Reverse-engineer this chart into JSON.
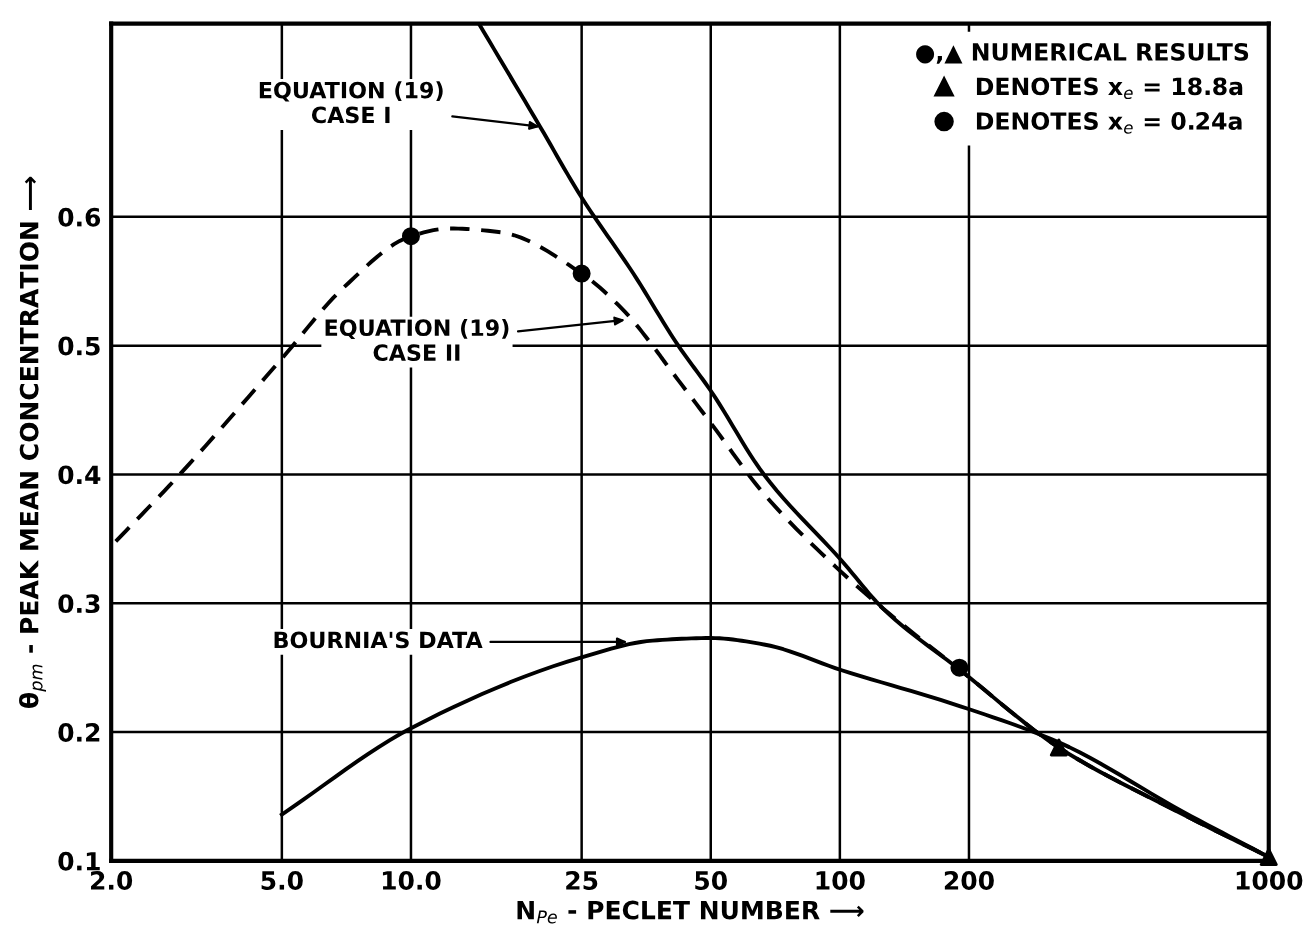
{
  "chart_data": {
    "type": "line",
    "xlabel": "N$_{Pe}$ - PECLET NUMBER ⟶",
    "ylabel": "θ$_{pm}$ - PEAK MEAN CONCENTRATION ⟶",
    "legend_title": "●,▲ NUMERICAL RESULTS",
    "log": "x",
    "grid": true,
    "legend": "top right",
    "xlim": [
      2,
      1000
    ],
    "ylim": [
      0.1,
      0.75
    ],
    "xticks": [
      {
        "value": 2,
        "label": "2.0"
      },
      {
        "value": 5,
        "label": "5.0"
      },
      {
        "value": 10,
        "label": "10.0"
      },
      25,
      50,
      100,
      200,
      1000
    ],
    "yticks": [
      0.1,
      0.2,
      0.3,
      0.4,
      0.5,
      0.6
    ],
    "series": [
      {
        "color": "#000000",
        "line_style": "solid",
        "marker": "none",
        "x": [
          14.4,
          20,
          25,
          33,
          42,
          50,
          66.5,
          101,
          126,
          191,
          324,
          632,
          1000
        ],
        "values": [
          0.75,
          0.67,
          0.615,
          0.556,
          0.5,
          0.465,
          0.4,
          0.333,
          0.296,
          0.248,
          0.188,
          0.136,
          0.103
        ]
      },
      {
        "color": "#000000",
        "line_style": "dashed",
        "marker": "none",
        "x": [
          2.05,
          2.89,
          5,
          6.96,
          10,
          12.3,
          16.2,
          25,
          31.6,
          36.6,
          39.5,
          50,
          66.5,
          101,
          126,
          191,
          324,
          632,
          1000
        ],
        "values": [
          0.348,
          0.4,
          0.49,
          0.545,
          0.585,
          0.591,
          0.588,
          0.556,
          0.526,
          0.5,
          0.485,
          0.44,
          0.385,
          0.324,
          0.296,
          0.248,
          0.188,
          0.136,
          0.103
        ]
      },
      {
        "color": "#000000",
        "line_style": "solid",
        "marker": "none",
        "x": [
          5,
          10,
          25,
          36.6,
          50,
          66.5,
          101,
          191,
          324,
          632,
          1000
        ],
        "values": [
          0.136,
          0.203,
          0.258,
          0.271,
          0.273,
          0.268,
          0.248,
          0.22,
          0.192,
          0.138,
          0.103
        ]
      },
      {
        "type": "scatter",
        "name": "DENOTES x$_{e}$ = 18.8a",
        "color": "#000000",
        "marker": "triangle",
        "x": [
          324,
          1000
        ],
        "values": [
          0.188,
          0.103
        ]
      },
      {
        "type": "scatter",
        "name": "DENOTES x$_{e}$ = 0.24a",
        "color": "#000000",
        "marker": "circle",
        "x": [
          10,
          25,
          190
        ],
        "values": [
          0.585,
          0.556,
          0.25
        ]
      }
    ],
    "annotations": [
      {
        "text": "EQUATION (19)\nCASE I",
        "x": 20,
        "y": 0.67
      },
      {
        "text": "EQUATION (19)\nCASE II",
        "x": 31.6,
        "y": 0.52
      },
      {
        "text": "BOURNIA'S DATA",
        "x": 32,
        "y": 0.27
      }
    ]
  }
}
